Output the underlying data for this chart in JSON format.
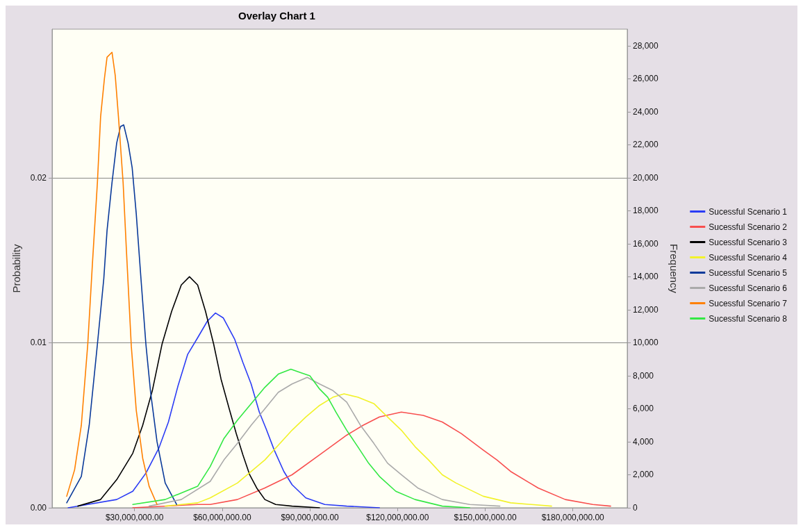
{
  "chart_data": {
    "type": "line",
    "title": "Overlay Chart 1",
    "ylabel": "Probability",
    "y2label": "Frequency",
    "legend": "right",
    "grid": "y",
    "marker": "none",
    "line_style": "solid",
    "xlim": [
      1800000,
      198600000
    ],
    "xticks": [
      {
        "value": 30000000,
        "label": "$30,000,000.00"
      },
      {
        "value": 60000000,
        "label": "$60,000,000.00"
      },
      {
        "value": 90000000,
        "label": "$90,000,000.00"
      },
      {
        "value": 120000000,
        "label": "$120,000,000.00"
      },
      {
        "value": 150000000,
        "label": "$150,000,000.00"
      },
      {
        "value": 180000000,
        "label": "$180,000,000.00"
      }
    ],
    "ylim": [
      0,
      0.029
    ],
    "yticks": [
      {
        "value": 0,
        "label": "0.00"
      },
      {
        "value": 0.01,
        "label": "0.01"
      },
      {
        "value": 0.02,
        "label": "0.02"
      }
    ],
    "y2lim": [
      0,
      29000
    ],
    "y2ticks": [
      0,
      {
        "value": 2000,
        "label": "2,000"
      },
      {
        "value": 4000,
        "label": "4,000"
      },
      {
        "value": 6000,
        "label": "6,000"
      },
      {
        "value": 8000,
        "label": "8,000"
      },
      {
        "value": 10000,
        "label": "10,000"
      },
      {
        "value": 12000,
        "label": "12,000"
      },
      {
        "value": 14000,
        "label": "14,000"
      },
      {
        "value": 16000,
        "label": "16,000"
      },
      {
        "value": 18000,
        "label": "18,000"
      },
      {
        "value": 20000,
        "label": "20,000"
      },
      {
        "value": 22000,
        "label": "22,000"
      },
      {
        "value": 24000,
        "label": "24,000"
      },
      {
        "value": 26000,
        "label": "26,000"
      },
      {
        "value": 28000,
        "label": "28,000"
      }
    ],
    "series": [
      {
        "name": "Sucessful Scenario 1",
        "color": "#2b3cf5",
        "x": [
          7300000,
          23900000,
          29400000,
          33900000,
          38300000,
          41600000,
          44900000,
          48200000,
          51600000,
          54900000,
          57700000,
          60400000,
          64300000,
          67100000,
          69900000,
          72700000,
          75000000,
          77800000,
          81100000,
          83900000,
          88600000,
          95100000,
          102600000,
          113800000
        ],
        "values": [
          0,
          0.0005,
          0.001,
          0.0021,
          0.0036,
          0.0052,
          0.0074,
          0.0093,
          0.0103,
          0.0113,
          0.0118,
          0.0115,
          0.0102,
          0.0088,
          0.0075,
          0.0058,
          0.0048,
          0.0035,
          0.0022,
          0.0014,
          0.0006,
          0.0002,
          0.0001,
          0
        ]
      },
      {
        "name": "Sucessful Scenario 2",
        "color": "#f84f4f",
        "x": [
          29400000,
          51600000,
          55900000,
          65200000,
          74600000,
          83900000,
          93300000,
          102600000,
          108200000,
          113800000,
          121300000,
          128800000,
          135300000,
          141800000,
          149300000,
          154000000,
          158700000,
          168100000,
          177400000,
          186800000,
          192900000
        ],
        "values": [
          0,
          0.0002,
          0.0002,
          0.0005,
          0.0012,
          0.002,
          0.0032,
          0.0044,
          0.005,
          0.0055,
          0.0058,
          0.0056,
          0.0052,
          0.0045,
          0.0035,
          0.0029,
          0.0022,
          0.0012,
          0.0005,
          0.0002,
          0.0001
        ]
      },
      {
        "name": "Sucessful Scenario 3",
        "color": "#000000",
        "x": [
          10600000,
          18400000,
          23900000,
          29400000,
          32800000,
          36100000,
          39400000,
          42700000,
          46000000,
          48800000,
          51600000,
          54300000,
          57100000,
          59600000,
          62400000,
          64800000,
          67100000,
          69400000,
          71800000,
          74600000,
          78300000,
          83900000,
          93300000
        ],
        "values": [
          0.0001,
          0.0005,
          0.0017,
          0.0033,
          0.005,
          0.0071,
          0.0099,
          0.0119,
          0.0135,
          0.014,
          0.0135,
          0.0119,
          0.0099,
          0.0078,
          0.006,
          0.0045,
          0.0032,
          0.002,
          0.0012,
          0.0005,
          0.0002,
          0.0001,
          0
        ]
      },
      {
        "name": "Sucessful Scenario 4",
        "color": "#f2f22a",
        "x": [
          40500000,
          51600000,
          55900000,
          65200000,
          74600000,
          83900000,
          88600000,
          93300000,
          97900000,
          101700000,
          106400000,
          112000000,
          116600000,
          121300000,
          126000000,
          130600000,
          135300000,
          140000000,
          149300000,
          158700000,
          172700000
        ],
        "values": [
          0.0001,
          0.0003,
          0.0006,
          0.0015,
          0.0029,
          0.0047,
          0.0055,
          0.0062,
          0.0067,
          0.0069,
          0.0067,
          0.0063,
          0.0055,
          0.0047,
          0.0037,
          0.0029,
          0.002,
          0.0015,
          0.0007,
          0.0003,
          0.0001
        ]
      },
      {
        "name": "Sucessful Scenario 5",
        "color": "#0a3a9a",
        "x": [
          6800000,
          11800000,
          14500000,
          17300000,
          19500000,
          20600000,
          22300000,
          23900000,
          25200000,
          26300000,
          27800000,
          29200000,
          30600000,
          32200000,
          33900000,
          35500000,
          37700000,
          40500000,
          44400000
        ],
        "values": [
          0.0003,
          0.0019,
          0.005,
          0.0099,
          0.0139,
          0.0168,
          0.0197,
          0.0221,
          0.0231,
          0.0232,
          0.0221,
          0.0206,
          0.0178,
          0.0139,
          0.0099,
          0.007,
          0.004,
          0.0015,
          0.0002
        ]
      },
      {
        "name": "Sucessful Scenario 6",
        "color": "#aaaaaa",
        "x": [
          35000000,
          46000000,
          55900000,
          60600000,
          65200000,
          69900000,
          74600000,
          79200000,
          83900000,
          89100000,
          93300000,
          97900000,
          102600000,
          107300000,
          111900000,
          116600000,
          121300000,
          126900000,
          135300000,
          144700000,
          155000000
        ],
        "values": [
          0.0001,
          0.0005,
          0.0016,
          0.0029,
          0.0039,
          0.005,
          0.006,
          0.007,
          0.0075,
          0.0079,
          0.0075,
          0.0071,
          0.0064,
          0.005,
          0.0039,
          0.0027,
          0.002,
          0.0012,
          0.0005,
          0.0002,
          0.0001
        ]
      },
      {
        "name": "Sucessful Scenario 7",
        "color": "#ff8000",
        "x": [
          6800000,
          9500000,
          11800000,
          14000000,
          15600000,
          17300000,
          18400000,
          19700000,
          20600000,
          22300000,
          23400000,
          24500000,
          26100000,
          27200000,
          28900000,
          30600000,
          32800000,
          35000000,
          37700000
        ],
        "values": [
          0.0007,
          0.0023,
          0.005,
          0.0099,
          0.0148,
          0.0197,
          0.0237,
          0.026,
          0.0273,
          0.0276,
          0.0262,
          0.0237,
          0.0197,
          0.0157,
          0.0098,
          0.0059,
          0.003,
          0.0013,
          0.0002
        ]
      },
      {
        "name": "Sucessful Scenario 8",
        "color": "#33e844",
        "x": [
          29400000,
          40500000,
          51600000,
          55900000,
          60600000,
          65200000,
          69900000,
          74600000,
          79200000,
          83500000,
          86700000,
          90000000,
          93300000,
          96100000,
          98900000,
          102600000,
          106400000,
          110100000,
          113800000,
          119400000,
          126000000,
          135300000,
          144700000
        ],
        "values": [
          0.0002,
          0.0005,
          0.0013,
          0.0025,
          0.0042,
          0.0053,
          0.0063,
          0.0073,
          0.0081,
          0.0084,
          0.0082,
          0.008,
          0.0072,
          0.0067,
          0.0058,
          0.0047,
          0.0037,
          0.0027,
          0.0019,
          0.001,
          0.0005,
          0.0001,
          0
        ]
      }
    ]
  }
}
